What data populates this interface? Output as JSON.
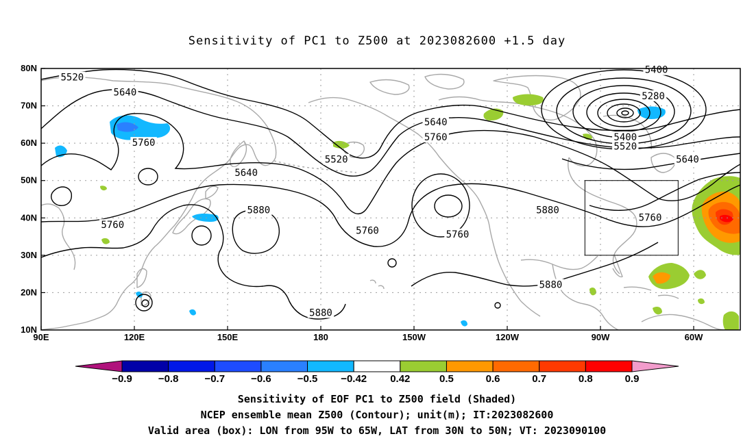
{
  "title": "Sensitivity of PC1 to Z500 at 2023082600 +1.5 day",
  "map": {
    "lat_labels": [
      "80N",
      "70N",
      "60N",
      "50N",
      "40N",
      "30N",
      "20N",
      "10N"
    ],
    "lon_labels": [
      "90E",
      "120E",
      "150E",
      "180",
      "150W",
      "120W",
      "90W",
      "60W"
    ],
    "lon_range": [
      "90E",
      "45W"
    ],
    "lat_range": [
      "10N",
      "80N"
    ],
    "contour_labels": [
      {
        "text": "5520",
        "lon": 100,
        "lat": 77.5
      },
      {
        "text": "5640",
        "lon": 117,
        "lat": 73.5
      },
      {
        "text": "5760",
        "lon": 123,
        "lat": 60
      },
      {
        "text": "5640",
        "lon": 156,
        "lat": 52
      },
      {
        "text": "5880",
        "lon": 160,
        "lat": 42
      },
      {
        "text": "5760",
        "lon": 113,
        "lat": 38
      },
      {
        "text": "5520",
        "lon": -175,
        "lat": 55.5
      },
      {
        "text": "5640",
        "lon": -143,
        "lat": 65.5
      },
      {
        "text": "5760",
        "lon": -143,
        "lat": 61.5
      },
      {
        "text": "5760",
        "lon": -165,
        "lat": 36.5
      },
      {
        "text": "5760",
        "lon": -136,
        "lat": 35.5
      },
      {
        "text": "5880",
        "lon": -180,
        "lat": 14.5
      },
      {
        "text": "5880",
        "lon": -107,
        "lat": 42
      },
      {
        "text": "5880",
        "lon": -106,
        "lat": 22
      },
      {
        "text": "5400",
        "lon": -72,
        "lat": 79.5
      },
      {
        "text": "5280",
        "lon": -73,
        "lat": 72.5
      },
      {
        "text": "5400",
        "lon": -82,
        "lat": 61.5
      },
      {
        "text": "5520",
        "lon": -82,
        "lat": 59
      },
      {
        "text": "5640",
        "lon": -62,
        "lat": 55.5
      },
      {
        "text": "5760",
        "lon": -74,
        "lat": 40
      }
    ],
    "valid_box": {
      "lon_w": -95,
      "lon_e": -65,
      "lat_s": 30,
      "lat_n": 50
    }
  },
  "colorbar": {
    "labels": [
      "-0.9",
      "-0.8",
      "-0.7",
      "-0.6",
      "-0.5",
      "-0.42",
      "0.42",
      "0.5",
      "0.6",
      "0.7",
      "0.8",
      "0.9"
    ],
    "colors": [
      "#0000a8",
      "#0018e8",
      "#1e4cff",
      "#2a80ff",
      "#12b8ff",
      "#ffffff",
      "#9acd32",
      "#ff9900",
      "#ff6a00",
      "#ff3a00",
      "#ff0000"
    ],
    "end_low": "#b0127c",
    "end_high": "#f29ccc"
  },
  "shading": {
    "positive_color": "#9acd32",
    "negative_color": "#12b8ff"
  },
  "captions": [
    "Sensitivity of EOF PC1 to Z500 field (Shaded)",
    "NCEP ensemble mean Z500 (Contour); unit(m); IT:2023082600",
    "Valid area (box): LON from 95W to 65W, LAT from 30N to 50N; VT: 2023090100"
  ]
}
